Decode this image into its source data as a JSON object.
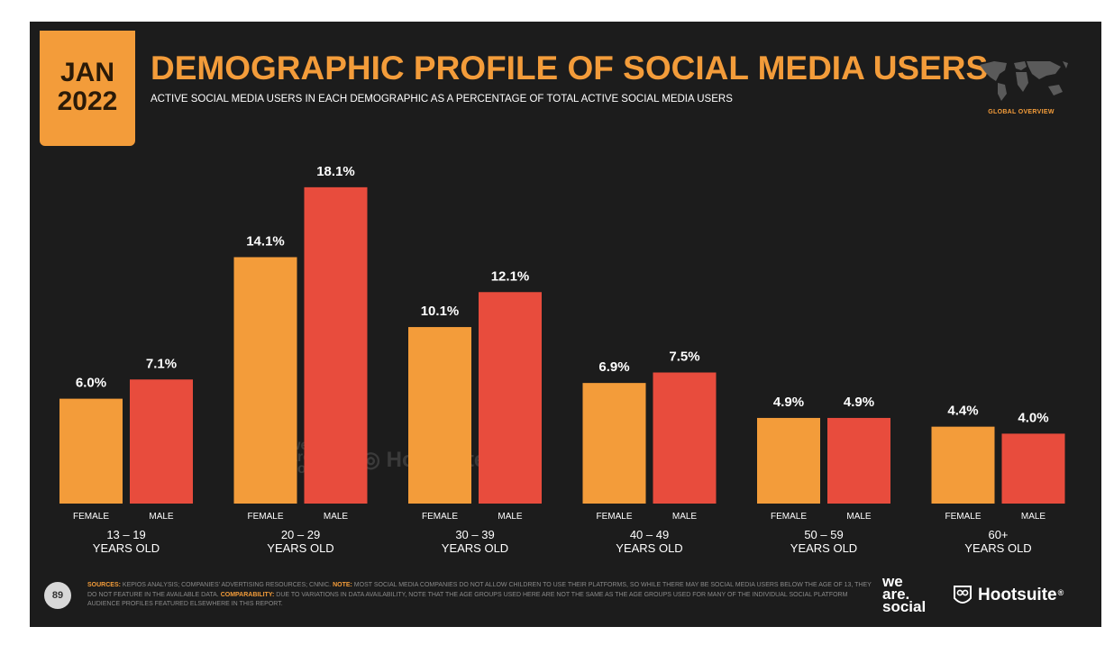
{
  "header": {
    "date_line1": "JAN",
    "date_line2": "2022",
    "title": "DEMOGRAPHIC PROFILE OF SOCIAL MEDIA USERS",
    "subtitle": "ACTIVE SOCIAL MEDIA USERS IN EACH DEMOGRAPHIC AS A PERCENTAGE OF TOTAL ACTIVE SOCIAL MEDIA USERS",
    "badge": "GLOBAL OVERVIEW"
  },
  "colors": {
    "background": "#1c1c1c",
    "female": "#f39c3a",
    "male": "#e84c3d",
    "text": "#ffffff",
    "accent": "#f39c3a"
  },
  "chart_data": {
    "type": "bar",
    "title": "DEMOGRAPHIC PROFILE OF SOCIAL MEDIA USERS",
    "xlabel": "",
    "ylabel": "",
    "ylim": [
      0,
      20
    ],
    "grid": false,
    "legend": "none",
    "categories": [
      {
        "line1": "13 – 19",
        "line2": "YEARS OLD"
      },
      {
        "line1": "20 – 29",
        "line2": "YEARS OLD"
      },
      {
        "line1": "30 – 39",
        "line2": "YEARS OLD"
      },
      {
        "line1": "40 – 49",
        "line2": "YEARS OLD"
      },
      {
        "line1": "50 – 59",
        "line2": "YEARS OLD"
      },
      {
        "line1": "60+",
        "line2": "YEARS OLD"
      }
    ],
    "series": [
      {
        "name": "FEMALE",
        "values": [
          6.0,
          14.1,
          10.1,
          6.9,
          4.9,
          4.4
        ],
        "labels": [
          "6.0%",
          "14.1%",
          "10.1%",
          "6.9%",
          "4.9%",
          "4.4%"
        ]
      },
      {
        "name": "MALE",
        "values": [
          7.1,
          18.1,
          12.1,
          7.5,
          4.9,
          4.0
        ],
        "labels": [
          "7.1%",
          "18.1%",
          "12.1%",
          "7.5%",
          "4.9%",
          "4.0%"
        ]
      }
    ]
  },
  "footer": {
    "page_number": "89",
    "sources_key": "SOURCES:",
    "sources_text": " KEPIOS ANALYSIS; COMPANIES' ADVERTISING RESOURCES; CNNIC. ",
    "note_key": "NOTE:",
    "note_text": " MOST SOCIAL MEDIA COMPANIES DO NOT ALLOW CHILDREN TO USE THEIR PLATFORMS, SO WHILE THERE MAY BE SOCIAL MEDIA USERS BELOW THE AGE OF 13, THEY DO NOT FEATURE IN THE AVAILABLE DATA. ",
    "comparability_key": "COMPARABILITY:",
    "comparability_text": " DUE TO VARIATIONS IN DATA AVAILABILITY, NOTE THAT THE AGE GROUPS USED HERE ARE NOT THE SAME AS THE AGE GROUPS USED FOR MANY OF THE INDIVIDUAL SOCIAL PLATFORM AUDIENCE PROFILES FEATURED ELSEWHERE IN THIS REPORT."
  },
  "logos": {
    "we_are_social": [
      "we",
      "are.",
      "social"
    ],
    "hootsuite": "Hootsuite",
    "hootsuite_mark": "®"
  }
}
